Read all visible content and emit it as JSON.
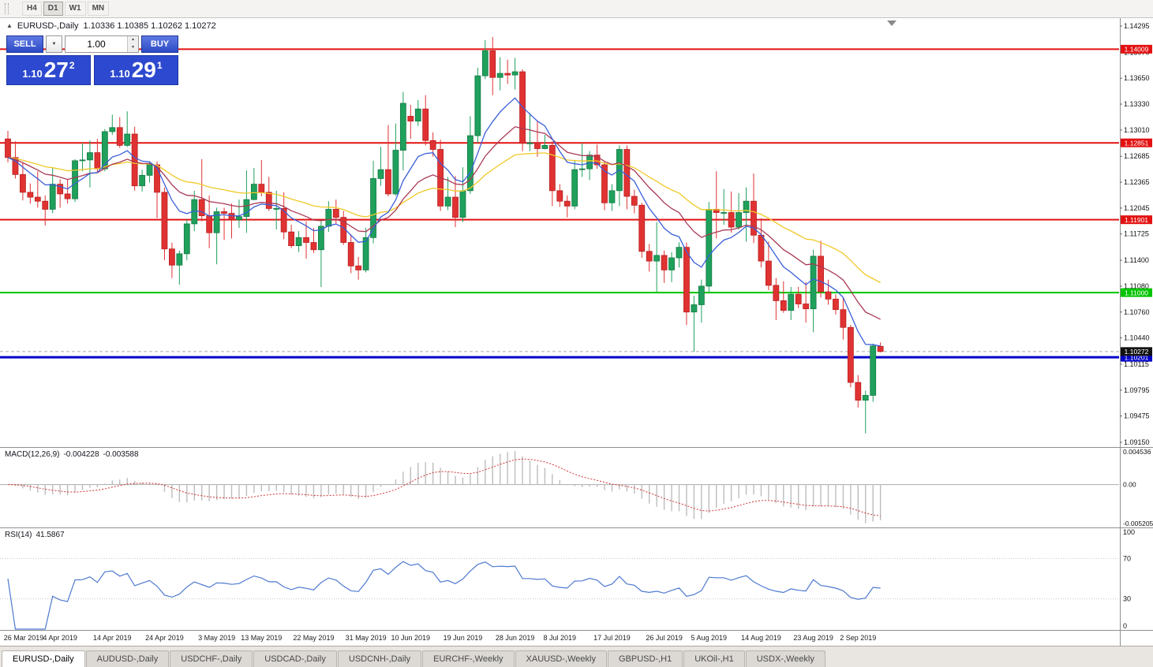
{
  "toolbar": {
    "timeframes": [
      "H4",
      "D1",
      "W1",
      "MN"
    ],
    "active": "D1"
  },
  "icons": {
    "collapse_up": "▲",
    "dropdown_down": "▼",
    "spin_up": "▲",
    "spin_down": "▼"
  },
  "chart_header": {
    "symbol": "EURUSD-,Daily",
    "ohlc": "1.10336 1.10385 1.10262 1.10272"
  },
  "one_click": {
    "sell_label": "SELL",
    "buy_label": "BUY",
    "volume": "1.00",
    "sell_price": {
      "base": "1.10",
      "big": "27",
      "sup": "2"
    },
    "buy_price": {
      "base": "1.10",
      "big": "29",
      "sup": "1"
    }
  },
  "price_scale": {
    "ticks": [
      "1.14295",
      "1.13970",
      "1.13650",
      "1.13330",
      "1.13010",
      "1.12685",
      "1.12365",
      "1.12045",
      "1.11725",
      "1.11400",
      "1.11080",
      "1.10760",
      "1.10440",
      "1.10115",
      "1.09795",
      "1.09475",
      "1.09150"
    ],
    "levels": [
      {
        "value": "1.14009",
        "price": 1.14009,
        "color": "#e31212",
        "width": 2
      },
      {
        "value": "1.12851",
        "price": 1.12851,
        "color": "#e31212",
        "width": 2
      },
      {
        "value": "1.11901",
        "price": 1.11901,
        "color": "#e31212",
        "width": 2
      },
      {
        "value": "1.11000",
        "price": 1.11,
        "color": "#00c400",
        "width": 2
      },
      {
        "value": "1.10201",
        "price": 1.10201,
        "color": "#0202c8",
        "width": 3
      }
    ],
    "current_price": {
      "value": "1.10272",
      "price": 1.10272,
      "box_color": "#111111"
    }
  },
  "macd": {
    "label": "MACD(12,26,9)",
    "main_value": "-0.004228",
    "signal_value": "-0.003588",
    "fast": 12,
    "slow": 26,
    "signal": 9,
    "scale_max": "0.004536",
    "scale_zero": "0.00",
    "scale_min": "-0.005205",
    "histogram_color": "#bdbdbd",
    "signal_color": "#d23333"
  },
  "rsi": {
    "label": "RSI(14)",
    "value": "41.5867",
    "period": 14,
    "line_color": "#4e79d0",
    "levels": [
      "100",
      "70",
      "30",
      "0"
    ],
    "level_lines": [
      70,
      30
    ]
  },
  "tabs": [
    "EURUSD-,Daily",
    "AUDUSD-,Daily",
    "USDCHF-,Daily",
    "USDCAD-,Daily",
    "USDCNH-,Daily",
    "EURCHF-,Weekly",
    "XAUUSD-,Weekly",
    "GBPUSD-,H1",
    "UKOil-,H1",
    "USDX-,Weekly"
  ],
  "chart_data": {
    "type": "candlestick",
    "symbol": "EURUSD",
    "timeframe": "Daily",
    "up_color": "#1fa05c",
    "down_color": "#e03232",
    "price_axis_top": 1.14383,
    "price_axis_bottom": 1.09101,
    "moving_averages": [
      {
        "type": "ema",
        "period": 36,
        "color": "#f0c928"
      },
      {
        "type": "ema",
        "period": 18,
        "color": "#a93a55"
      },
      {
        "type": "ema",
        "period": 9,
        "color": "#3a5fd9"
      }
    ],
    "x_labels": [
      {
        "i": 0,
        "t": "26 Mar 2019"
      },
      {
        "i": 7,
        "t": "4 Apr 2019"
      },
      {
        "i": 14,
        "t": "14 Apr 2019"
      },
      {
        "i": 21,
        "t": "24 Apr 2019"
      },
      {
        "i": 28,
        "t": "3 May 2019"
      },
      {
        "i": 34,
        "t": "13 May 2019"
      },
      {
        "i": 41,
        "t": "22 May 2019"
      },
      {
        "i": 48,
        "t": "31 May 2019"
      },
      {
        "i": 54,
        "t": "10 Jun 2019"
      },
      {
        "i": 61,
        "t": "19 Jun 2019"
      },
      {
        "i": 68,
        "t": "28 Jun 2019"
      },
      {
        "i": 74,
        "t": "8 Jul 2019"
      },
      {
        "i": 81,
        "t": "17 Jul 2019"
      },
      {
        "i": 88,
        "t": "26 Jul 2019"
      },
      {
        "i": 94,
        "t": "5 Aug 2019"
      },
      {
        "i": 101,
        "t": "14 Aug 2019"
      },
      {
        "i": 108,
        "t": "23 Aug 2019"
      },
      {
        "i": 114,
        "t": "2 Sep 2019"
      }
    ],
    "candles": [
      [
        1.129,
        1.13,
        1.1261,
        1.1267
      ],
      [
        1.1267,
        1.1287,
        1.1241,
        1.1246
      ],
      [
        1.1246,
        1.126,
        1.1214,
        1.1224
      ],
      [
        1.1224,
        1.1235,
        1.121,
        1.1218
      ],
      [
        1.1218,
        1.125,
        1.1205,
        1.1213
      ],
      [
        1.1213,
        1.122,
        1.1183,
        1.1203
      ],
      [
        1.1203,
        1.1255,
        1.1198,
        1.1234
      ],
      [
        1.1234,
        1.124,
        1.1205,
        1.1222
      ],
      [
        1.1222,
        1.124,
        1.121,
        1.1216
      ],
      [
        1.1216,
        1.1265,
        1.1212,
        1.1263
      ],
      [
        1.1263,
        1.1285,
        1.125,
        1.1264
      ],
      [
        1.1264,
        1.1288,
        1.123,
        1.1273
      ],
      [
        1.1273,
        1.129,
        1.1248,
        1.1253
      ],
      [
        1.1253,
        1.1302,
        1.125,
        1.1299
      ],
      [
        1.1299,
        1.132,
        1.1295,
        1.1304
      ],
      [
        1.1304,
        1.1317,
        1.1279,
        1.1282
      ],
      [
        1.1282,
        1.1324,
        1.128,
        1.1296
      ],
      [
        1.1296,
        1.1305,
        1.1226,
        1.1232
      ],
      [
        1.1232,
        1.1252,
        1.1225,
        1.1245
      ],
      [
        1.1245,
        1.1262,
        1.1236,
        1.1258
      ],
      [
        1.1258,
        1.1262,
        1.1192,
        1.1224
      ],
      [
        1.1224,
        1.123,
        1.114,
        1.1154
      ],
      [
        1.1154,
        1.1162,
        1.1118,
        1.1134
      ],
      [
        1.1134,
        1.1152,
        1.111,
        1.1148
      ],
      [
        1.1148,
        1.119,
        1.114,
        1.1185
      ],
      [
        1.1185,
        1.1226,
        1.1176,
        1.1215
      ],
      [
        1.1215,
        1.1265,
        1.1188,
        1.1195
      ],
      [
        1.1195,
        1.122,
        1.1155,
        1.1174
      ],
      [
        1.1174,
        1.1205,
        1.1135,
        1.12
      ],
      [
        1.12,
        1.1205,
        1.1165,
        1.1198
      ],
      [
        1.1198,
        1.121,
        1.1167,
        1.119
      ],
      [
        1.119,
        1.1215,
        1.118,
        1.1194
      ],
      [
        1.1194,
        1.1251,
        1.1174,
        1.1215
      ],
      [
        1.1215,
        1.1254,
        1.1214,
        1.1234
      ],
      [
        1.1234,
        1.1264,
        1.1219,
        1.1224
      ],
      [
        1.1224,
        1.1243,
        1.1201,
        1.1204
      ],
      [
        1.1204,
        1.1226,
        1.1178,
        1.1204
      ],
      [
        1.1204,
        1.1224,
        1.1166,
        1.1175
      ],
      [
        1.1175,
        1.1184,
        1.1155,
        1.1158
      ],
      [
        1.1158,
        1.1176,
        1.115,
        1.1168
      ],
      [
        1.1168,
        1.1188,
        1.1142,
        1.1162
      ],
      [
        1.1162,
        1.118,
        1.1149,
        1.1153
      ],
      [
        1.1153,
        1.1188,
        1.1107,
        1.1182
      ],
      [
        1.1182,
        1.1213,
        1.1175,
        1.1203
      ],
      [
        1.1203,
        1.1215,
        1.1184,
        1.1193
      ],
      [
        1.1193,
        1.1201,
        1.1159,
        1.1162
      ],
      [
        1.1162,
        1.1172,
        1.1124,
        1.1133
      ],
      [
        1.1133,
        1.1144,
        1.1116,
        1.1128
      ],
      [
        1.1128,
        1.118,
        1.1125,
        1.1168
      ],
      [
        1.1168,
        1.1263,
        1.1161,
        1.1241
      ],
      [
        1.1241,
        1.128,
        1.1232,
        1.1252
      ],
      [
        1.1252,
        1.1307,
        1.1219,
        1.1222
      ],
      [
        1.1222,
        1.1309,
        1.122,
        1.1276
      ],
      [
        1.1276,
        1.1348,
        1.1251,
        1.1334
      ],
      [
        1.1318,
        1.1332,
        1.129,
        1.1312
      ],
      [
        1.1312,
        1.1338,
        1.1306,
        1.1327
      ],
      [
        1.1327,
        1.1344,
        1.1282,
        1.1288
      ],
      [
        1.1288,
        1.1298,
        1.1268,
        1.1277
      ],
      [
        1.1277,
        1.1289,
        1.1201,
        1.1207
      ],
      [
        1.1207,
        1.1243,
        1.1202,
        1.1218
      ],
      [
        1.1218,
        1.1244,
        1.1181,
        1.1193
      ],
      [
        1.1193,
        1.1255,
        1.1187,
        1.1226
      ],
      [
        1.1226,
        1.1318,
        1.1222,
        1.1294
      ],
      [
        1.1294,
        1.1378,
        1.1285,
        1.1368
      ],
      [
        1.1368,
        1.1412,
        1.1364,
        1.1399
      ],
      [
        1.1399,
        1.1416,
        1.1344,
        1.1366
      ],
      [
        1.1366,
        1.1391,
        1.135,
        1.1371
      ],
      [
        1.1371,
        1.1388,
        1.1358,
        1.1369
      ],
      [
        1.1369,
        1.139,
        1.1351,
        1.1373
      ],
      [
        1.1373,
        1.1376,
        1.1275,
        1.1285
      ],
      [
        1.1285,
        1.1322,
        1.1275,
        1.1285
      ],
      [
        1.1285,
        1.1312,
        1.1268,
        1.1278
      ],
      [
        1.1278,
        1.1295,
        1.1277,
        1.1282
      ],
      [
        1.1282,
        1.1287,
        1.1207,
        1.1226
      ],
      [
        1.1226,
        1.1234,
        1.1206,
        1.1213
      ],
      [
        1.1213,
        1.122,
        1.1193,
        1.1207
      ],
      [
        1.1207,
        1.1264,
        1.1203,
        1.1252
      ],
      [
        1.1252,
        1.1285,
        1.1243,
        1.1253
      ],
      [
        1.1253,
        1.1275,
        1.1239,
        1.127
      ],
      [
        1.127,
        1.1283,
        1.1253,
        1.1258
      ],
      [
        1.1258,
        1.1262,
        1.1202,
        1.1211
      ],
      [
        1.1211,
        1.1234,
        1.1201,
        1.1226
      ],
      [
        1.1226,
        1.1282,
        1.1207,
        1.1277
      ],
      [
        1.1277,
        1.1282,
        1.1203,
        1.1219
      ],
      [
        1.1219,
        1.1227,
        1.1198,
        1.1208
      ],
      [
        1.1208,
        1.1211,
        1.1143,
        1.1151
      ],
      [
        1.1151,
        1.116,
        1.1126,
        1.1139
      ],
      [
        1.1139,
        1.1187,
        1.1101,
        1.1146
      ],
      [
        1.1146,
        1.1152,
        1.1112,
        1.1128
      ],
      [
        1.1128,
        1.115,
        1.1113,
        1.1143
      ],
      [
        1.1143,
        1.1162,
        1.1131,
        1.1156
      ],
      [
        1.1156,
        1.1162,
        1.106,
        1.1076
      ],
      [
        1.1076,
        1.1096,
        1.1027,
        1.1085
      ],
      [
        1.1085,
        1.1116,
        1.1063,
        1.1108
      ],
      [
        1.1108,
        1.1212,
        1.1101,
        1.1203
      ],
      [
        1.1203,
        1.125,
        1.1167,
        1.1199
      ],
      [
        1.1199,
        1.1228,
        1.1184,
        1.1199
      ],
      [
        1.1199,
        1.1225,
        1.1174,
        1.1181
      ],
      [
        1.1181,
        1.1223,
        1.1178,
        1.1199
      ],
      [
        1.1199,
        1.123,
        1.1163,
        1.1213
      ],
      [
        1.1213,
        1.1247,
        1.1161,
        1.1171
      ],
      [
        1.1171,
        1.1192,
        1.1131,
        1.1139
      ],
      [
        1.1139,
        1.1163,
        1.1103,
        1.1109
      ],
      [
        1.1109,
        1.1118,
        1.1066,
        1.109
      ],
      [
        1.109,
        1.1114,
        1.1075,
        1.1078
      ],
      [
        1.1078,
        1.1107,
        1.1066,
        1.1098
      ],
      [
        1.1098,
        1.1107,
        1.1081,
        1.1086
      ],
      [
        1.1086,
        1.1113,
        1.1063,
        1.108
      ],
      [
        1.108,
        1.1153,
        1.1051,
        1.1145
      ],
      [
        1.1145,
        1.1164,
        1.1094,
        1.1101
      ],
      [
        1.1101,
        1.1116,
        1.1085,
        1.1092
      ],
      [
        1.1092,
        1.1098,
        1.1073,
        1.1079
      ],
      [
        1.1079,
        1.1094,
        1.1042,
        1.1057
      ],
      [
        1.1057,
        1.106,
        1.0983,
        1.0989
      ],
      [
        1.0989,
        1.0998,
        1.0958,
        1.0967
      ],
      [
        1.0967,
        1.0979,
        1.0926,
        1.0973
      ],
      [
        1.0973,
        1.1037,
        1.0965,
        1.1034
      ],
      [
        1.10336,
        1.10385,
        1.10262,
        1.10272
      ]
    ]
  }
}
